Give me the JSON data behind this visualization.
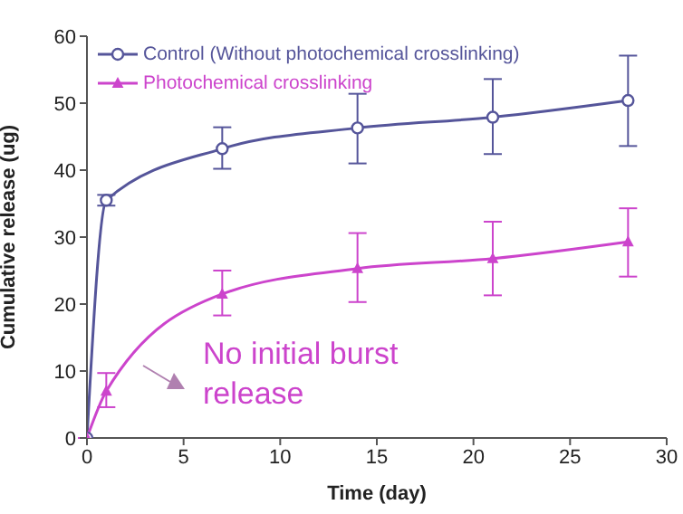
{
  "chart_data": {
    "type": "line",
    "xlabel": "Time (day)",
    "ylabel": "Cumulative release (ug)",
    "x": [
      0,
      1,
      7,
      14,
      21,
      28
    ],
    "xlim": [
      0,
      30
    ],
    "xticks": [
      0,
      5,
      10,
      15,
      20,
      25,
      30
    ],
    "ylim": [
      0,
      60
    ],
    "yticks": [
      0,
      10,
      20,
      30,
      40,
      50,
      60
    ],
    "grid": false,
    "legend": "top left",
    "series": [
      {
        "name": "Control (Without photochemical crosslinking)",
        "color": "#55559a",
        "marker": "circle",
        "values": [
          0,
          35.5,
          43.2,
          46.3,
          47.9,
          50.4
        ],
        "errors": [
          null,
          [
            34.7,
            36.3
          ],
          [
            40.2,
            46.4
          ],
          [
            41,
            51.4
          ],
          [
            42.4,
            53.6
          ],
          [
            43.6,
            57.1
          ]
        ]
      },
      {
        "name": "Photochemical crosslinking",
        "color": "#cc44cc",
        "marker": "triangle",
        "values": [
          0,
          7,
          21.5,
          25.3,
          26.8,
          29.3
        ],
        "errors": [
          null,
          [
            4.6,
            9.7
          ],
          [
            18.3,
            25
          ],
          [
            20.3,
            30.6
          ],
          [
            21.3,
            32.3
          ],
          [
            24.1,
            34.3
          ]
        ]
      }
    ],
    "annotations": [
      "No initial burst release"
    ]
  }
}
